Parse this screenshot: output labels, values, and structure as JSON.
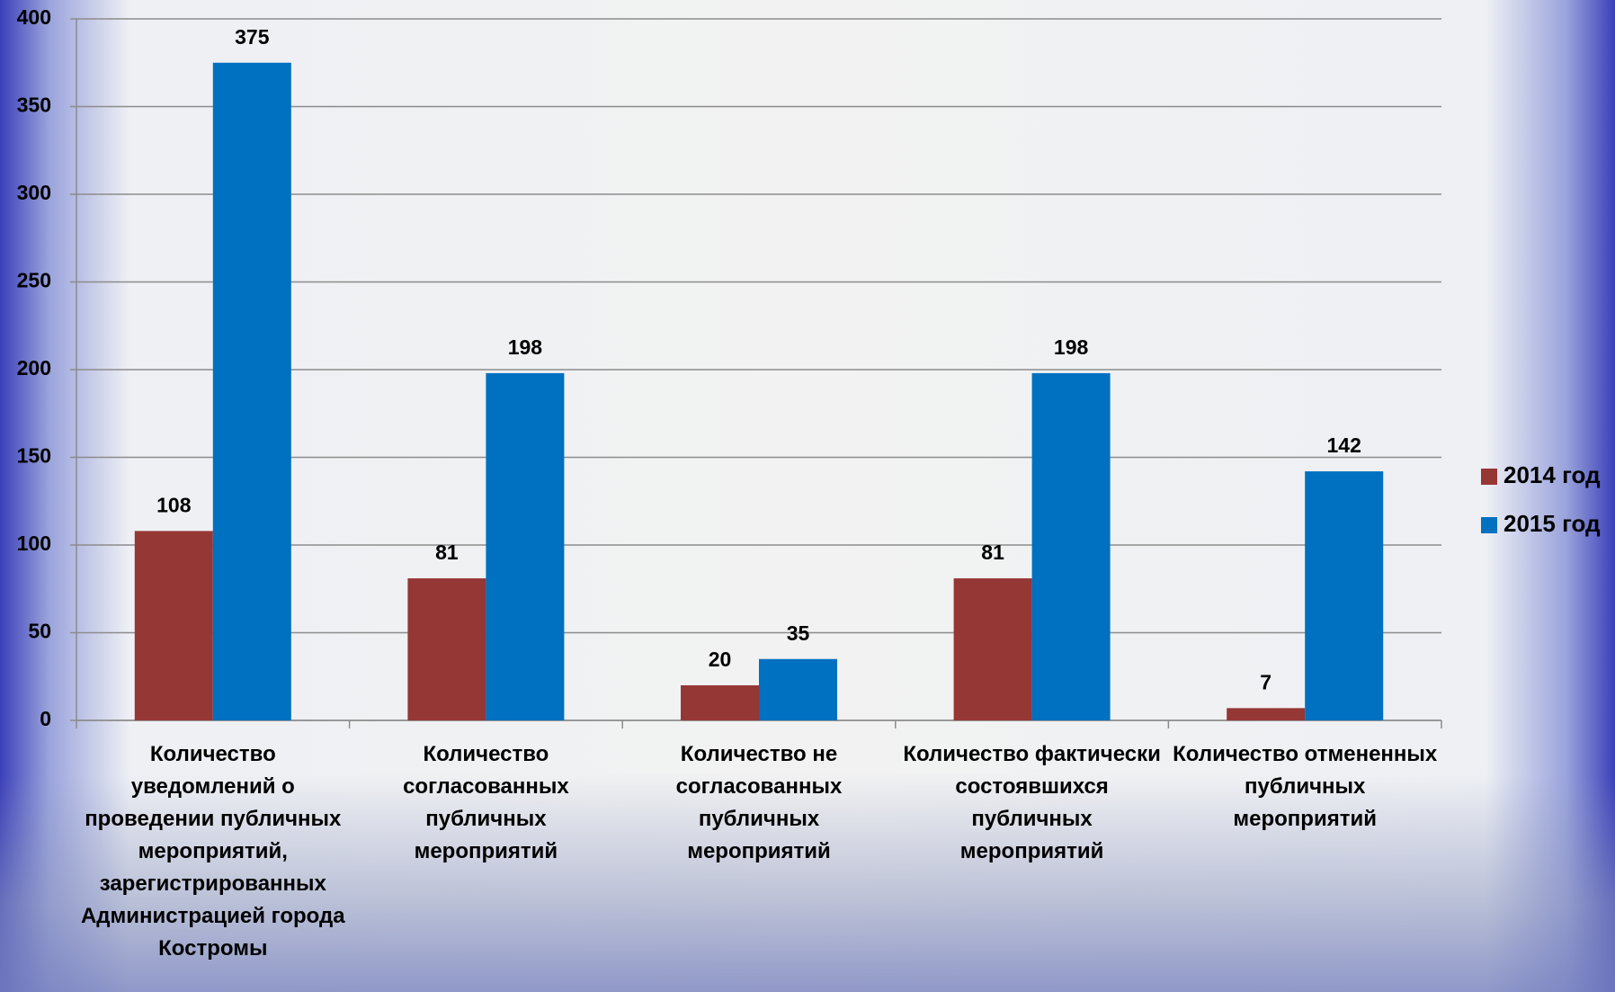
{
  "chart_data": {
    "type": "bar",
    "categories": [
      "Количество уведомлений о проведении публичных мероприятий, зарегистрированных Администрацией города Костромы",
      "Количество согласованных публичных мероприятий",
      "Количество не согласованных публичных мероприятий",
      "Количество фактически состоявшихся публичных мероприятий",
      "Количество отмененных публичных мероприятий"
    ],
    "series": [
      {
        "name": "2014 год",
        "color": "#953735",
        "values": [
          108,
          81,
          20,
          81,
          7
        ]
      },
      {
        "name": "2015 год",
        "color": "#0070c0",
        "values": [
          375,
          198,
          35,
          198,
          142
        ]
      }
    ],
    "ylim": [
      0,
      400
    ],
    "yticks": [
      0,
      50,
      100,
      150,
      200,
      250,
      300,
      350,
      400
    ],
    "grid": true,
    "legend": "right"
  }
}
